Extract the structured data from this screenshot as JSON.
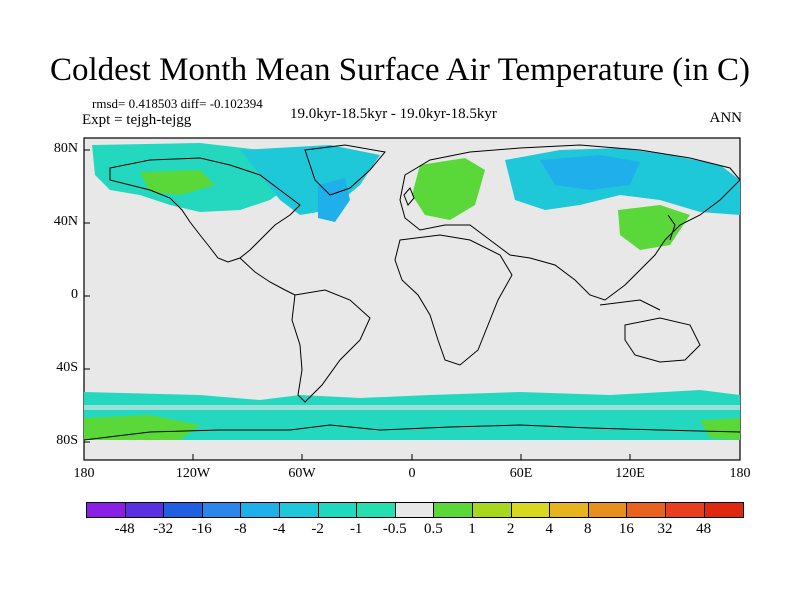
{
  "title": "Coldest Month Mean Surface Air Temperature (in C)",
  "stats": "rmsd= 0.418503 diff= -0.102394",
  "expt": "Expt = tejgh-tejgg",
  "center_label": "19.0kyr-18.5kyr - 19.0kyr-18.5kyr",
  "season": "ANN",
  "lat_ticks": [
    "80N",
    "40N",
    "0",
    "40S",
    "80S"
  ],
  "lon_ticks": [
    "180",
    "120W",
    "60W",
    "0",
    "60E",
    "120E",
    "180"
  ],
  "colorbar": {
    "labels": [
      "-48",
      "-32",
      "-16",
      "-8",
      "-4",
      "-2",
      "-1",
      "-0.5",
      "0.5",
      "1",
      "2",
      "4",
      "8",
      "16",
      "32",
      "48"
    ],
    "colors": [
      "#8b1fe6",
      "#5a30e0",
      "#1f5fe0",
      "#2a86e8",
      "#1fb0ec",
      "#1ec8d8",
      "#1ed8c0",
      "#24e0b0",
      "#e8e8e8",
      "#5ad83a",
      "#a8d81e",
      "#d8d81e",
      "#e8b41e",
      "#e8901e",
      "#e8641e",
      "#e8401e",
      "#e02810"
    ]
  },
  "colors": {
    "ocean_background": "#e8e8e8",
    "coast": "#000000"
  }
}
